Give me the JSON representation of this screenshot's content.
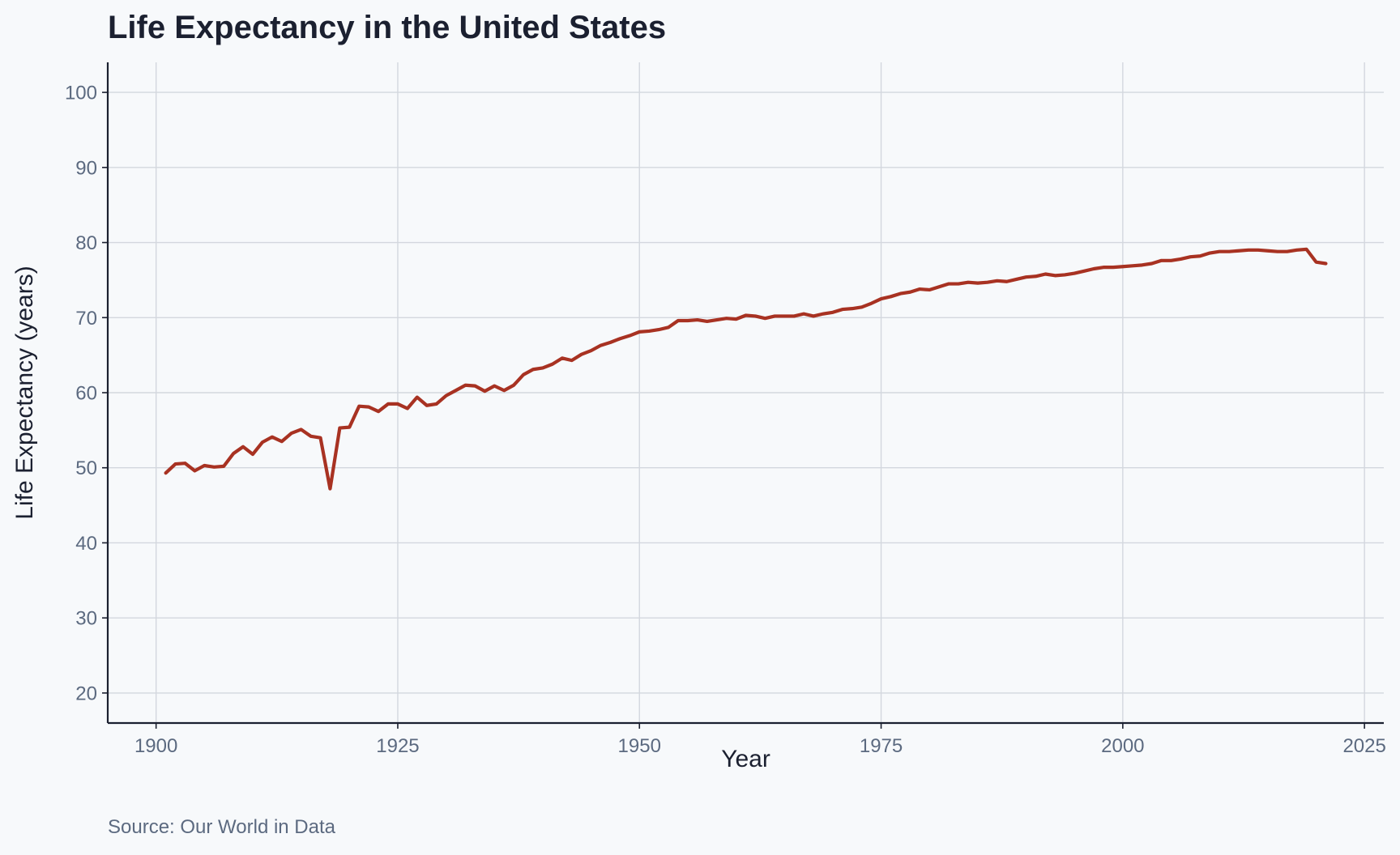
{
  "chart_data": {
    "type": "line",
    "title": "Life Expectancy in the United States",
    "xlabel": "Year",
    "ylabel": "Life Expectancy (years)",
    "source_note": "Source: Our World in Data",
    "xlim": [
      1895,
      2027
    ],
    "ylim": [
      16,
      104
    ],
    "x_ticks": [
      1900,
      1925,
      1950,
      1975,
      2000,
      2025
    ],
    "y_ticks": [
      20,
      30,
      40,
      50,
      60,
      70,
      80,
      90,
      100
    ],
    "grid": true,
    "legend": "none",
    "colors": {
      "line": "#a83222",
      "grid": "#d3d7de",
      "axis": "#1b2030",
      "tick_text": "#5c6a80",
      "background": "#f7f9fb"
    },
    "series": [
      {
        "name": "Life Expectancy",
        "x": [
          1901,
          1902,
          1903,
          1904,
          1905,
          1906,
          1907,
          1908,
          1909,
          1910,
          1911,
          1912,
          1913,
          1914,
          1915,
          1916,
          1917,
          1918,
          1919,
          1920,
          1921,
          1922,
          1923,
          1924,
          1925,
          1926,
          1927,
          1928,
          1929,
          1930,
          1931,
          1932,
          1933,
          1934,
          1935,
          1936,
          1937,
          1938,
          1939,
          1940,
          1941,
          1942,
          1943,
          1944,
          1945,
          1946,
          1947,
          1948,
          1949,
          1950,
          1951,
          1952,
          1953,
          1954,
          1955,
          1956,
          1957,
          1958,
          1959,
          1960,
          1961,
          1962,
          1963,
          1964,
          1965,
          1966,
          1967,
          1968,
          1969,
          1970,
          1971,
          1972,
          1973,
          1974,
          1975,
          1976,
          1977,
          1978,
          1979,
          1980,
          1981,
          1982,
          1983,
          1984,
          1985,
          1986,
          1987,
          1988,
          1989,
          1990,
          1991,
          1992,
          1993,
          1994,
          1995,
          1996,
          1997,
          1998,
          1999,
          2000,
          2001,
          2002,
          2003,
          2004,
          2005,
          2006,
          2007,
          2008,
          2009,
          2010,
          2011,
          2012,
          2013,
          2014,
          2015,
          2016,
          2017,
          2018,
          2019,
          2020,
          2021
        ],
        "values": [
          49.3,
          50.5,
          50.6,
          49.6,
          50.3,
          50.1,
          50.2,
          51.9,
          52.8,
          51.8,
          53.4,
          54.1,
          53.5,
          54.6,
          55.1,
          54.2,
          54.0,
          47.2,
          55.3,
          55.4,
          58.2,
          58.1,
          57.5,
          58.5,
          58.5,
          57.9,
          59.4,
          58.3,
          58.5,
          59.6,
          60.3,
          61.0,
          60.9,
          60.2,
          60.9,
          60.3,
          61.0,
          62.4,
          63.1,
          63.3,
          63.8,
          64.6,
          64.3,
          65.1,
          65.6,
          66.3,
          66.7,
          67.2,
          67.6,
          68.1,
          68.2,
          68.4,
          68.7,
          69.6,
          69.6,
          69.7,
          69.5,
          69.7,
          69.9,
          69.8,
          70.3,
          70.2,
          69.9,
          70.2,
          70.2,
          70.2,
          70.5,
          70.2,
          70.5,
          70.7,
          71.1,
          71.2,
          71.4,
          71.9,
          72.5,
          72.8,
          73.2,
          73.4,
          73.8,
          73.7,
          74.1,
          74.5,
          74.5,
          74.7,
          74.6,
          74.7,
          74.9,
          74.8,
          75.1,
          75.4,
          75.5,
          75.8,
          75.6,
          75.7,
          75.9,
          76.2,
          76.5,
          76.7,
          76.7,
          76.8,
          76.9,
          77.0,
          77.2,
          77.6,
          77.6,
          77.8,
          78.1,
          78.2,
          78.6,
          78.8,
          78.8,
          78.9,
          79.0,
          79.0,
          78.9,
          78.8,
          78.8,
          79.0,
          79.1,
          77.4,
          77.2
        ]
      }
    ]
  }
}
